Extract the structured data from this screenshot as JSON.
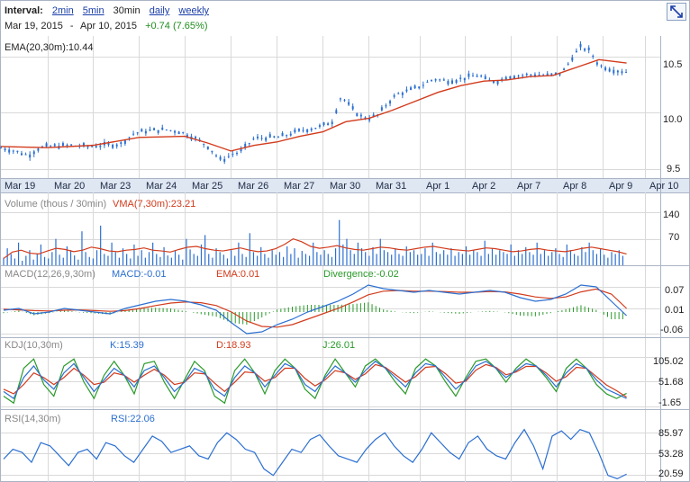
{
  "header": {
    "interval_label": "Interval:",
    "intervals": [
      "2min",
      "5min",
      "30min",
      "daily",
      "weekly"
    ],
    "active_interval": "30min"
  },
  "range": {
    "start": "Mar 19, 2015",
    "sep": "-",
    "end": "Apr 10, 2015",
    "change": "+0.74 (7.65%)"
  },
  "colors": {
    "price": "#2b6fd1",
    "ema": "#d23b1c",
    "macd": "#2b6fd1",
    "macd_ema": "#d23b1c",
    "divergence": "#2a9a2a",
    "k": "#2b6fd1",
    "d": "#d23b1c",
    "j": "#2a9a2a",
    "rsi": "#2b6fd1",
    "axis_band": "#dfe7f3",
    "grid": "#d9d9d9"
  },
  "chart_data": [
    {
      "type": "candlestick",
      "panel": "price",
      "legend": "EMA(20,30m):10.44",
      "x_categories": [
        "Mar 19",
        "Mar 20",
        "Mar 23",
        "Mar 24",
        "Mar 25",
        "Mar 26",
        "Mar 27",
        "Mar 30",
        "Mar 31",
        "Apr 1",
        "Apr 2",
        "Apr 7",
        "Apr 8",
        "Apr 9",
        "Apr 10"
      ],
      "y_ticks": [
        "10.5",
        "10.0",
        "9.5"
      ],
      "ylim": [
        9.42,
        10.68
      ],
      "close_path": [
        [
          0,
          9.69
        ],
        [
          0.3,
          9.66
        ],
        [
          0.6,
          9.62
        ],
        [
          0.8,
          9.68
        ],
        [
          1.0,
          9.7
        ],
        [
          1.5,
          9.71
        ],
        [
          1.9,
          9.7
        ],
        [
          2.2,
          9.71
        ],
        [
          2.6,
          9.72
        ],
        [
          2.9,
          9.82
        ],
        [
          3.2,
          9.84
        ],
        [
          3.6,
          9.85
        ],
        [
          3.9,
          9.83
        ],
        [
          4.2,
          9.78
        ],
        [
          4.5,
          9.7
        ],
        [
          4.8,
          9.57
        ],
        [
          5.0,
          9.63
        ],
        [
          5.2,
          9.65
        ],
        [
          5.5,
          9.77
        ],
        [
          5.8,
          9.78
        ],
        [
          6.0,
          9.78
        ],
        [
          6.2,
          9.8
        ],
        [
          6.5,
          9.84
        ],
        [
          6.9,
          9.87
        ],
        [
          7.2,
          9.92
        ],
        [
          7.4,
          10.15
        ],
        [
          7.6,
          10.05
        ],
        [
          7.8,
          9.97
        ],
        [
          8.0,
          9.95
        ],
        [
          8.2,
          9.98
        ],
        [
          8.4,
          10.08
        ],
        [
          8.6,
          10.16
        ],
        [
          8.9,
          10.2
        ],
        [
          9.2,
          10.25
        ],
        [
          9.4,
          10.3
        ],
        [
          9.7,
          10.28
        ],
        [
          9.9,
          10.29
        ],
        [
          10.2,
          10.32
        ],
        [
          10.4,
          10.33
        ],
        [
          10.6,
          10.28
        ],
        [
          10.8,
          10.28
        ],
        [
          11.0,
          10.32
        ],
        [
          11.3,
          10.33
        ],
        [
          11.6,
          10.34
        ],
        [
          11.9,
          10.33
        ],
        [
          12.2,
          10.35
        ],
        [
          12.4,
          10.48
        ],
        [
          12.6,
          10.58
        ],
        [
          12.8,
          10.55
        ],
        [
          13.0,
          10.42
        ],
        [
          13.3,
          10.38
        ],
        [
          13.6,
          10.36
        ]
      ],
      "ema_path": [
        [
          0,
          9.7
        ],
        [
          1,
          9.69
        ],
        [
          2,
          9.71
        ],
        [
          3,
          9.78
        ],
        [
          4,
          9.79
        ],
        [
          4.5,
          9.73
        ],
        [
          5,
          9.66
        ],
        [
          5.5,
          9.71
        ],
        [
          6,
          9.74
        ],
        [
          6.5,
          9.79
        ],
        [
          7,
          9.83
        ],
        [
          7.5,
          9.92
        ],
        [
          8,
          9.95
        ],
        [
          8.5,
          10.02
        ],
        [
          9,
          10.1
        ],
        [
          9.5,
          10.18
        ],
        [
          10,
          10.24
        ],
        [
          10.5,
          10.28
        ],
        [
          11,
          10.29
        ],
        [
          11.5,
          10.32
        ],
        [
          12,
          10.33
        ],
        [
          12.5,
          10.4
        ],
        [
          13,
          10.47
        ],
        [
          13.6,
          10.44
        ]
      ]
    },
    {
      "type": "bar",
      "panel": "volume",
      "legend": "Volume (thous / 30min)",
      "legend2": "VMA(7,30m):23.21",
      "y_ticks": [
        "140",
        "70"
      ],
      "ylim": [
        0,
        150
      ],
      "values": [
        20,
        45,
        30,
        18,
        60,
        12,
        25,
        40,
        15,
        30,
        55,
        22,
        18,
        35,
        70,
        28,
        20,
        50,
        40,
        26,
        15,
        90,
        35,
        22,
        18,
        40,
        105,
        30,
        25,
        60,
        35,
        20,
        45,
        30,
        18,
        55,
        25,
        40,
        20,
        35,
        60,
        30,
        22,
        48,
        26,
        20,
        38,
        28,
        15,
        70,
        42,
        30,
        25,
        55,
        80,
        30,
        20,
        45,
        35,
        28,
        18,
        40,
        25,
        60,
        30,
        22,
        85,
        35,
        25,
        48,
        30,
        20,
        40,
        28,
        35,
        22,
        50,
        30,
        45,
        20,
        38,
        30,
        25,
        60,
        35,
        28,
        40,
        30,
        22,
        45,
        120,
        55,
        70,
        40,
        30,
        60,
        45,
        35,
        25,
        48,
        30,
        70,
        40,
        35,
        28,
        45,
        30,
        25,
        50,
        35,
        40,
        28,
        30,
        45,
        25,
        60,
        35,
        30,
        40,
        28,
        45,
        25,
        35,
        30,
        50,
        28,
        40,
        35,
        25,
        65,
        30,
        45,
        28,
        40,
        35,
        30,
        55,
        25,
        40,
        30,
        48,
        35,
        28,
        60,
        30,
        40,
        25,
        35,
        45,
        30,
        22,
        55,
        40,
        30,
        25,
        48,
        35,
        60,
        40,
        30,
        45,
        28,
        20,
        35,
        30,
        40,
        25
      ],
      "vma": [
        18,
        35,
        40,
        32,
        30,
        38,
        45,
        42,
        36,
        40,
        48,
        44,
        38,
        36,
        40,
        42,
        46,
        40,
        38,
        35,
        42,
        48,
        50,
        44,
        40,
        38,
        42,
        46,
        40,
        36,
        38,
        44,
        55,
        70,
        62,
        50,
        45,
        48,
        52,
        46,
        42,
        40,
        44,
        48,
        46,
        42,
        40,
        44,
        48,
        50,
        46,
        42,
        40,
        38,
        42,
        46,
        44,
        40,
        36,
        38,
        42,
        44,
        40,
        38,
        36,
        40,
        45,
        48,
        44,
        40,
        36,
        30
      ]
    },
    {
      "type": "line",
      "panel": "macd",
      "legend": "MACD(12,26,9,30m)",
      "legend_macd": "MACD:-0.01",
      "legend_ema": "EMA:0.01",
      "legend_div": "Divergence:-0.02",
      "y_ticks": [
        "0.07",
        "0.01",
        "-0.06"
      ],
      "ylim": [
        -0.07,
        0.085
      ],
      "macd": [
        0.005,
        0.01,
        -0.005,
        0.0,
        0.01,
        0.005,
        0.0,
        -0.005,
        0.01,
        0.02,
        0.03,
        0.035,
        0.03,
        0.02,
        0.005,
        -0.03,
        -0.06,
        -0.055,
        -0.035,
        -0.02,
        0.0,
        0.015,
        0.03,
        0.05,
        0.075,
        0.065,
        0.06,
        0.055,
        0.06,
        0.055,
        0.05,
        0.055,
        0.06,
        0.055,
        0.04,
        0.03,
        0.035,
        0.05,
        0.075,
        0.07,
        0.03,
        -0.01
      ],
      "ema": [
        0.008,
        0.006,
        0.004,
        0.003,
        0.005,
        0.006,
        0.004,
        0.002,
        0.004,
        0.01,
        0.018,
        0.025,
        0.028,
        0.026,
        0.018,
        0.0,
        -0.025,
        -0.04,
        -0.042,
        -0.035,
        -0.02,
        -0.005,
        0.01,
        0.028,
        0.048,
        0.058,
        0.06,
        0.058,
        0.058,
        0.057,
        0.055,
        0.055,
        0.057,
        0.056,
        0.05,
        0.042,
        0.038,
        0.042,
        0.056,
        0.064,
        0.05,
        0.01
      ],
      "divergence": [
        -0.003,
        0.004,
        -0.009,
        -0.003,
        0.005,
        -0.001,
        -0.004,
        -0.007,
        0.006,
        0.01,
        0.012,
        0.01,
        0.002,
        -0.006,
        -0.013,
        -0.03,
        -0.035,
        -0.015,
        0.007,
        0.015,
        0.02,
        0.02,
        0.02,
        0.022,
        0.027,
        0.007,
        0.0,
        -0.003,
        0.002,
        -0.002,
        -0.005,
        0.0,
        0.003,
        -0.001,
        -0.01,
        -0.012,
        -0.003,
        0.008,
        0.019,
        0.006,
        -0.02,
        -0.02
      ]
    },
    {
      "type": "line",
      "panel": "kdj",
      "legend": "KDJ(10,30m)",
      "legend_k": "K:15.39",
      "legend_d": "D:18.93",
      "legend_j": "J:26.01",
      "y_ticks": [
        "105.02",
        "51.68",
        "-1.65"
      ],
      "ylim": [
        -8,
        112
      ],
      "k": [
        30,
        15,
        60,
        85,
        55,
        35,
        70,
        90,
        60,
        30,
        55,
        80,
        65,
        40,
        75,
        85,
        60,
        30,
        50,
        80,
        70,
        35,
        20,
        60,
        85,
        70,
        40,
        65,
        90,
        80,
        45,
        30,
        60,
        85,
        70,
        50,
        75,
        95,
        80,
        60,
        40,
        70,
        90,
        85,
        60,
        35,
        55,
        85,
        95,
        80,
        60,
        75,
        90,
        85,
        65,
        40,
        70,
        90,
        80,
        55,
        35,
        25,
        15
      ],
      "d": [
        35,
        25,
        45,
        70,
        60,
        45,
        60,
        80,
        65,
        45,
        50,
        70,
        65,
        50,
        65,
        78,
        65,
        45,
        50,
        70,
        68,
        48,
        30,
        50,
        72,
        70,
        52,
        60,
        80,
        80,
        58,
        42,
        55,
        75,
        70,
        56,
        68,
        88,
        82,
        66,
        50,
        62,
        82,
        84,
        68,
        48,
        52,
        76,
        88,
        82,
        66,
        72,
        84,
        84,
        70,
        52,
        62,
        82,
        80,
        62,
        44,
        32,
        18
      ],
      "j": [
        20,
        5,
        80,
        100,
        45,
        20,
        85,
        100,
        50,
        15,
        65,
        95,
        65,
        25,
        90,
        95,
        50,
        15,
        55,
        95,
        75,
        20,
        5,
        75,
        100,
        70,
        25,
        75,
        100,
        80,
        35,
        15,
        65,
        100,
        70,
        40,
        85,
        100,
        80,
        50,
        25,
        80,
        100,
        85,
        50,
        20,
        60,
        95,
        100,
        80,
        50,
        80,
        100,
        85,
        60,
        30,
        80,
        100,
        80,
        45,
        25,
        15,
        26
      ]
    },
    {
      "type": "line",
      "panel": "rsi",
      "legend": "RSI(14,30m)",
      "legend_val": "RSI:22.06",
      "y_ticks": [
        "85.97",
        "53.28",
        "20.59"
      ],
      "ylim": [
        10,
        95
      ],
      "values": [
        45,
        60,
        55,
        40,
        70,
        65,
        50,
        35,
        55,
        60,
        45,
        70,
        65,
        50,
        40,
        60,
        80,
        72,
        55,
        60,
        65,
        50,
        45,
        70,
        85,
        75,
        60,
        55,
        30,
        20,
        40,
        60,
        55,
        75,
        82,
        65,
        50,
        45,
        40,
        60,
        75,
        85,
        65,
        50,
        40,
        60,
        85,
        70,
        55,
        45,
        70,
        80,
        60,
        50,
        45,
        70,
        90,
        65,
        30,
        80,
        88,
        75,
        90,
        85,
        55,
        20,
        15,
        22
      ]
    }
  ]
}
